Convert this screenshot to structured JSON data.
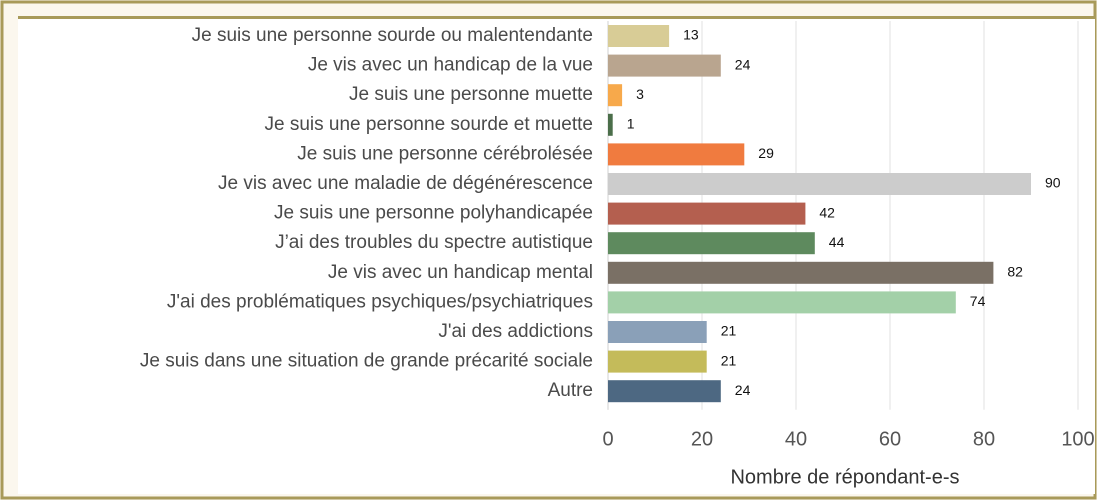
{
  "chart_data": {
    "type": "barh",
    "categories": [
      "Je suis une personne sourde ou malentendante",
      "Je vis avec un handicap de la vue",
      "Je suis une personne muette",
      "Je suis une personne sourde et muette",
      "Je suis une personne cérébrolésée",
      "Je vis avec une maladie de dégénérescence",
      "Je suis une personne polyhandicapée",
      "J’ai des troubles du spectre autistique",
      "Je vis avec un handicap mental",
      "J'ai des problématiques psychiques/psychiatriques",
      "J'ai des addictions",
      "Je suis dans une situation de grande précarité sociale",
      "Autre"
    ],
    "values": [
      13,
      24,
      3,
      1,
      29,
      90,
      42,
      44,
      82,
      74,
      21,
      21,
      24
    ],
    "colors": [
      "#d8cc96",
      "#b9a58f",
      "#f7a94b",
      "#4b6e4a",
      "#f07b3f",
      "#cccccc",
      "#b45f4f",
      "#5e8a5e",
      "#7a7065",
      "#a3d0a8",
      "#8aa0b8",
      "#c4bb5a",
      "#4d6882"
    ],
    "xlabel": "Nombre de répondant-e-s",
    "xlim": [
      0,
      100
    ],
    "xticks": [
      0,
      20,
      40,
      60,
      80,
      100
    ],
    "grid": true
  }
}
